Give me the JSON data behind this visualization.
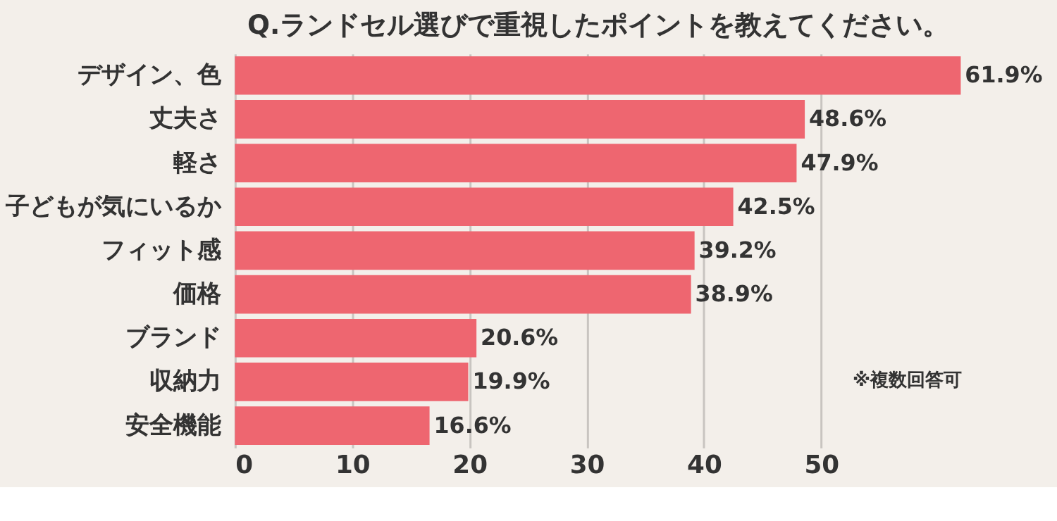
{
  "chart_data": {
    "type": "bar",
    "orientation": "horizontal",
    "title": "Q.ランドセル選びで重視したポイントを教えてください。",
    "categories": [
      "デザイン、色",
      "丈夫さ",
      "軽さ",
      "子どもが気にいるか",
      "フィット感",
      "価格",
      "ブランド",
      "収納力",
      "安全機能"
    ],
    "values": [
      61.9,
      48.6,
      47.9,
      42.5,
      39.2,
      38.9,
      20.6,
      19.9,
      16.6
    ],
    "value_labels": [
      "61.9%",
      "48.6%",
      "47.9%",
      "42.5%",
      "39.2%",
      "38.9%",
      "20.6%",
      "19.9%",
      "16.6%"
    ],
    "color": "#ee6670",
    "xlim": [
      0,
      62
    ],
    "xticks": [
      0,
      10,
      20,
      30,
      40,
      50
    ],
    "grid": "x",
    "annotations": [
      "※複数回答可"
    ]
  }
}
